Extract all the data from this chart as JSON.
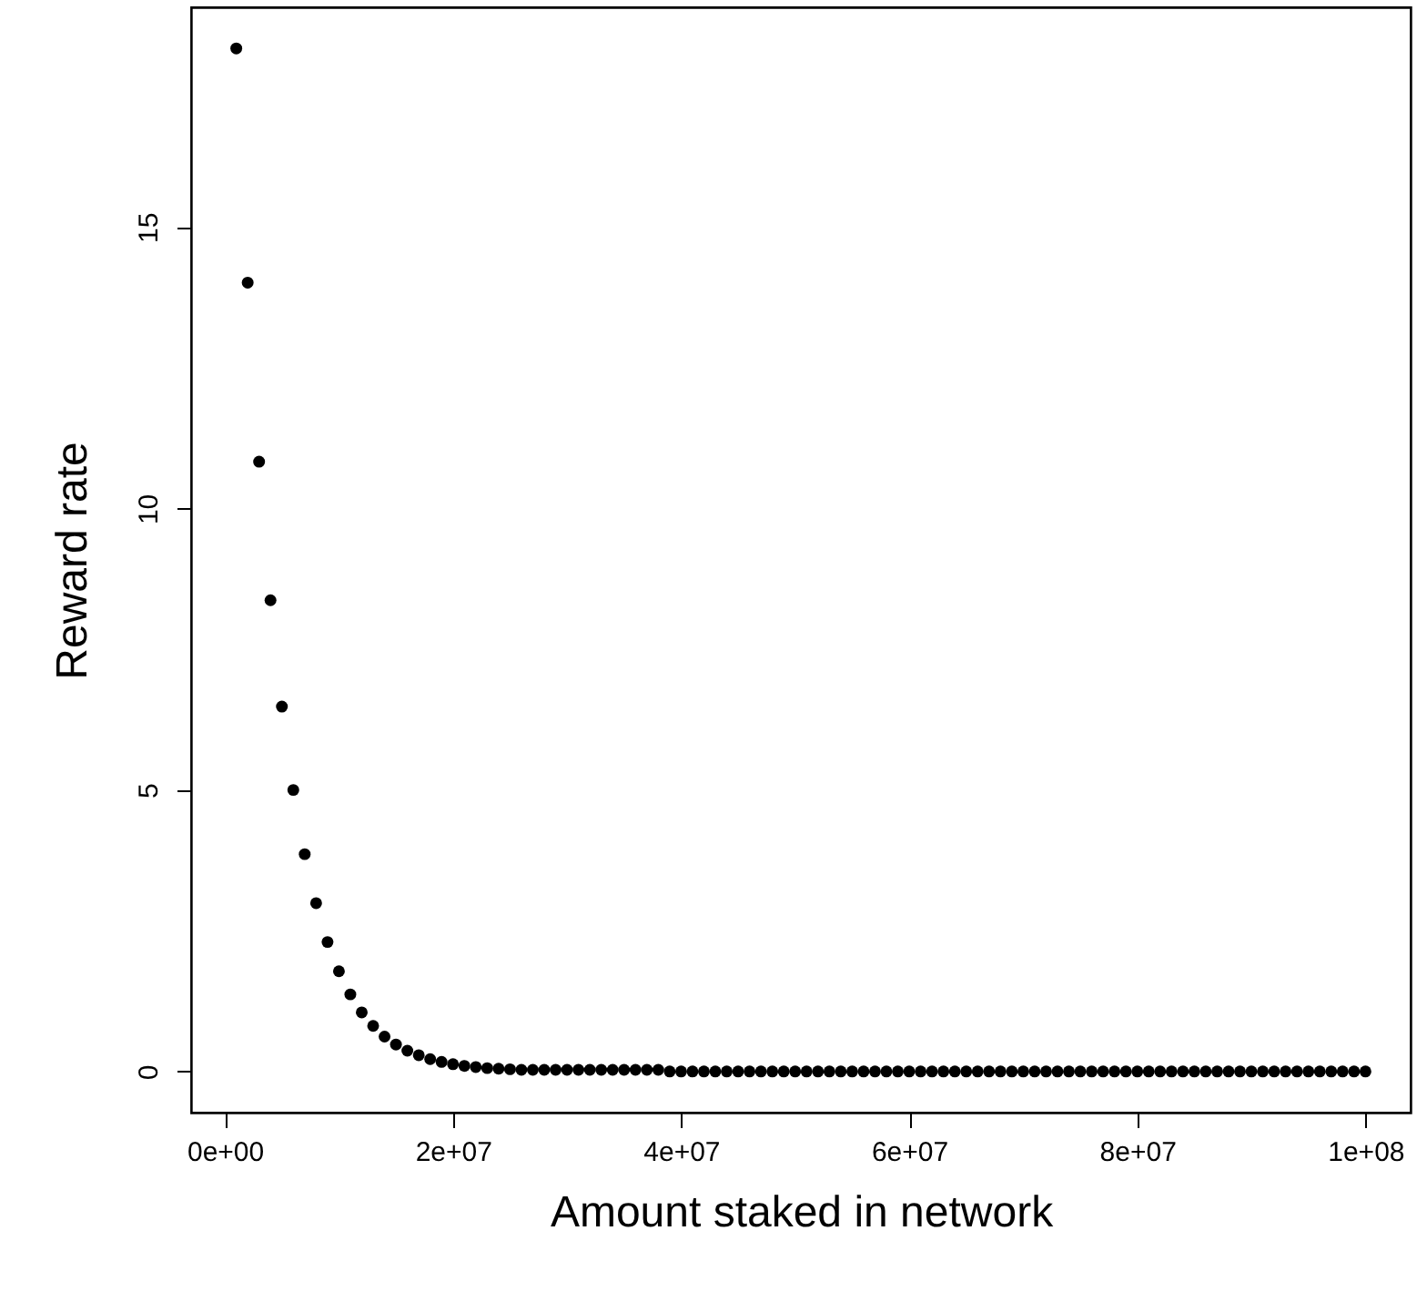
{
  "chart_data": {
    "type": "scatter",
    "xlabel": "Amount staked in network",
    "ylabel": "Reward rate",
    "marker": "circle",
    "grid": false,
    "x": [
      1000000,
      2000000,
      3000000,
      4000000,
      5000000,
      6000000,
      7000000,
      8000000,
      9000000,
      10000000,
      11000000,
      12000000,
      13000000,
      14000000,
      15000000,
      16000000,
      17000000,
      18000000,
      19000000,
      20000000,
      21000000,
      22000000,
      23000000,
      24000000,
      25000000,
      26000000,
      27000000,
      28000000,
      29000000,
      30000000,
      31000000,
      32000000,
      33000000,
      34000000,
      35000000,
      36000000,
      37000000,
      38000000,
      39000000,
      40000000,
      41000000,
      42000000,
      43000000,
      44000000,
      45000000,
      46000000,
      47000000,
      48000000,
      49000000,
      50000000,
      51000000,
      52000000,
      53000000,
      54000000,
      55000000,
      56000000,
      57000000,
      58000000,
      59000000,
      60000000,
      61000000,
      62000000,
      63000000,
      64000000,
      65000000,
      66000000,
      67000000,
      68000000,
      69000000,
      70000000,
      71000000,
      72000000,
      73000000,
      74000000,
      75000000,
      76000000,
      77000000,
      78000000,
      79000000,
      80000000,
      81000000,
      82000000,
      83000000,
      84000000,
      85000000,
      86000000,
      87000000,
      88000000,
      89000000,
      90000000,
      91000000,
      92000000,
      93000000,
      94000000,
      95000000,
      96000000,
      97000000,
      98000000,
      99000000,
      100000000
    ],
    "series": [
      {
        "color": "#000000",
        "values": [
          18.17,
          14.01,
          10.83,
          8.37,
          6.48,
          5.0,
          3.86,
          2.99,
          2.3,
          1.78,
          1.37,
          1.05,
          0.81,
          0.62,
          0.48,
          0.37,
          0.29,
          0.22,
          0.17,
          0.13,
          0.1,
          0.08,
          0.06,
          0.05,
          0.04,
          0.03,
          0.03,
          0.03,
          0.03,
          0.03,
          0.03,
          0.03,
          0.03,
          0.03,
          0.03,
          0.03,
          0.03,
          0.03,
          0,
          0,
          0,
          0,
          0,
          0,
          0,
          0,
          0,
          0,
          0,
          0,
          0,
          0,
          0,
          0,
          0,
          0,
          0,
          0,
          0,
          0,
          0,
          0,
          0,
          0,
          0,
          0,
          0,
          0,
          0,
          0,
          0,
          0,
          0,
          0,
          0,
          0,
          0,
          0,
          0,
          0,
          0,
          0,
          0,
          0,
          0,
          0,
          0,
          0,
          0,
          0,
          0,
          0,
          0,
          0,
          0,
          0,
          0,
          0,
          0,
          0
        ]
      }
    ],
    "xlim": [
      -2960000,
      103960000
    ],
    "xticks": [
      {
        "value": 0,
        "label": "0e+00"
      },
      {
        "value": 20000000,
        "label": "2e+07"
      },
      {
        "value": 40000000,
        "label": "4e+07"
      },
      {
        "value": 60000000,
        "label": "6e+07"
      },
      {
        "value": 80000000,
        "label": "8e+07"
      },
      {
        "value": 100000000,
        "label": "1e+08"
      }
    ],
    "ylim": [
      -0.73,
      18.9
    ],
    "yticks": [
      0,
      5,
      10,
      15
    ]
  }
}
